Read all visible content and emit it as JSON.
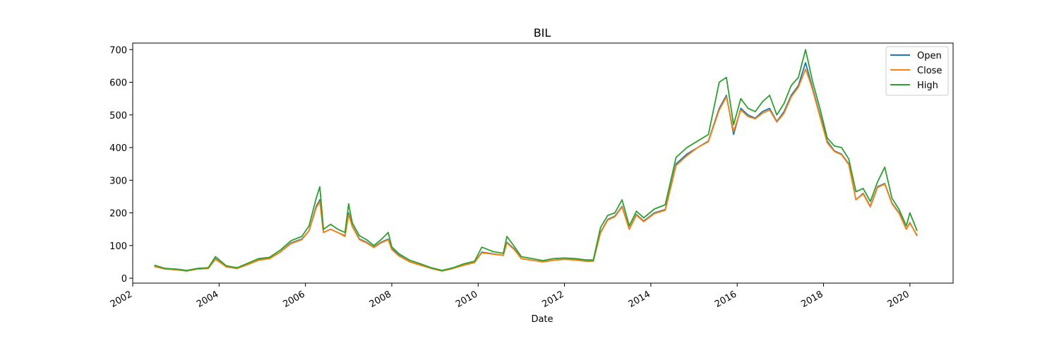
{
  "chart_data": {
    "type": "line",
    "title": "BIL",
    "xlabel": "Date",
    "ylabel": "",
    "xlim": [
      "2002-01-01",
      "2021-01-01"
    ],
    "ylim": [
      -15,
      720
    ],
    "xticks": [
      "2002",
      "2004",
      "2006",
      "2008",
      "2010",
      "2012",
      "2014",
      "2016",
      "2018",
      "2020"
    ],
    "yticks": [
      0,
      100,
      200,
      300,
      400,
      500,
      600,
      700
    ],
    "grid": false,
    "legend_position": "top-right",
    "series": [
      {
        "name": "Open",
        "color": "#1f77b4",
        "x": [
          "2002-07",
          "2002-10",
          "2003-01",
          "2003-04",
          "2003-07",
          "2003-10",
          "2003-12",
          "2004-03",
          "2004-06",
          "2004-09",
          "2004-12",
          "2005-03",
          "2005-06",
          "2005-09",
          "2005-12",
          "2006-02",
          "2006-04",
          "2006-05",
          "2006-06",
          "2006-08",
          "2006-10",
          "2006-12",
          "2007-01",
          "2007-02",
          "2007-04",
          "2007-06",
          "2007-08",
          "2007-10",
          "2007-12",
          "2008-01",
          "2008-03",
          "2008-06",
          "2008-09",
          "2008-12",
          "2009-03",
          "2009-06",
          "2009-09",
          "2009-12",
          "2010-02",
          "2010-05",
          "2010-08",
          "2010-09",
          "2010-11",
          "2011-01",
          "2011-04",
          "2011-07",
          "2011-10",
          "2012-01",
          "2012-04",
          "2012-07",
          "2012-09",
          "2012-11",
          "2013-01",
          "2013-03",
          "2013-05",
          "2013-07",
          "2013-09",
          "2013-11",
          "2014-02",
          "2014-05",
          "2014-08",
          "2014-11",
          "2015-02",
          "2015-05",
          "2015-08",
          "2015-10",
          "2015-12",
          "2016-02",
          "2016-04",
          "2016-06",
          "2016-08",
          "2016-10",
          "2016-12",
          "2017-02",
          "2017-04",
          "2017-06",
          "2017-08",
          "2017-09",
          "2017-10",
          "2017-12",
          "2018-02",
          "2018-04",
          "2018-06",
          "2018-08",
          "2018-10",
          "2018-12",
          "2019-02",
          "2019-04",
          "2019-06",
          "2019-08",
          "2019-10",
          "2019-12",
          "2020-01",
          "2020-03"
        ],
        "values": [
          36,
          28,
          26,
          22,
          28,
          30,
          60,
          35,
          30,
          42,
          56,
          60,
          80,
          108,
          120,
          145,
          220,
          240,
          140,
          150,
          140,
          130,
          200,
          160,
          120,
          110,
          95,
          110,
          120,
          90,
          70,
          50,
          40,
          30,
          22,
          30,
          40,
          48,
          80,
          75,
          70,
          110,
          90,
          60,
          55,
          50,
          55,
          58,
          56,
          52,
          52,
          140,
          180,
          190,
          220,
          150,
          195,
          175,
          200,
          210,
          350,
          380,
          400,
          420,
          520,
          560,
          440,
          520,
          500,
          490,
          510,
          520,
          480,
          510,
          560,
          590,
          660,
          620,
          580,
          500,
          420,
          390,
          380,
          350,
          240,
          260,
          220,
          280,
          290,
          230,
          200,
          150,
          170,
          130
        ]
      },
      {
        "name": "Close",
        "color": "#ff7f0e",
        "x": [
          "2002-07",
          "2002-10",
          "2003-01",
          "2003-04",
          "2003-07",
          "2003-10",
          "2003-12",
          "2004-03",
          "2004-06",
          "2004-09",
          "2004-12",
          "2005-03",
          "2005-06",
          "2005-09",
          "2005-12",
          "2006-02",
          "2006-04",
          "2006-05",
          "2006-06",
          "2006-08",
          "2006-10",
          "2006-12",
          "2007-01",
          "2007-02",
          "2007-04",
          "2007-06",
          "2007-08",
          "2007-10",
          "2007-12",
          "2008-01",
          "2008-03",
          "2008-06",
          "2008-09",
          "2008-12",
          "2009-03",
          "2009-06",
          "2009-09",
          "2009-12",
          "2010-02",
          "2010-05",
          "2010-08",
          "2010-09",
          "2010-11",
          "2011-01",
          "2011-04",
          "2011-07",
          "2011-10",
          "2012-01",
          "2012-04",
          "2012-07",
          "2012-09",
          "2012-11",
          "2013-01",
          "2013-03",
          "2013-05",
          "2013-07",
          "2013-09",
          "2013-11",
          "2014-02",
          "2014-05",
          "2014-08",
          "2014-11",
          "2015-02",
          "2015-05",
          "2015-08",
          "2015-10",
          "2015-12",
          "2016-02",
          "2016-04",
          "2016-06",
          "2016-08",
          "2016-10",
          "2016-12",
          "2017-02",
          "2017-04",
          "2017-06",
          "2017-08",
          "2017-09",
          "2017-10",
          "2017-12",
          "2018-02",
          "2018-04",
          "2018-06",
          "2018-08",
          "2018-10",
          "2018-12",
          "2019-02",
          "2019-04",
          "2019-06",
          "2019-08",
          "2019-10",
          "2019-12",
          "2020-01",
          "2020-03"
        ],
        "values": [
          36,
          28,
          26,
          22,
          28,
          30,
          58,
          35,
          30,
          42,
          55,
          60,
          80,
          106,
          118,
          145,
          215,
          235,
          140,
          150,
          140,
          128,
          195,
          158,
          118,
          108,
          94,
          108,
          118,
          88,
          68,
          50,
          40,
          30,
          22,
          30,
          40,
          48,
          78,
          74,
          70,
          108,
          88,
          60,
          55,
          50,
          55,
          58,
          56,
          52,
          52,
          138,
          178,
          188,
          218,
          150,
          193,
          173,
          198,
          208,
          345,
          375,
          400,
          418,
          515,
          555,
          450,
          515,
          495,
          488,
          505,
          515,
          478,
          505,
          555,
          585,
          640,
          610,
          575,
          495,
          415,
          388,
          378,
          348,
          240,
          258,
          218,
          278,
          288,
          228,
          198,
          150,
          168,
          132
        ]
      },
      {
        "name": "High",
        "color": "#2ca02c",
        "x": [
          "2002-07",
          "2002-10",
          "2003-01",
          "2003-04",
          "2003-07",
          "2003-10",
          "2003-12",
          "2004-03",
          "2004-06",
          "2004-09",
          "2004-12",
          "2005-03",
          "2005-06",
          "2005-09",
          "2005-12",
          "2006-02",
          "2006-04",
          "2006-05",
          "2006-06",
          "2006-08",
          "2006-10",
          "2006-12",
          "2007-01",
          "2007-02",
          "2007-04",
          "2007-06",
          "2007-08",
          "2007-10",
          "2007-12",
          "2008-01",
          "2008-03",
          "2008-06",
          "2008-09",
          "2008-12",
          "2009-03",
          "2009-06",
          "2009-09",
          "2009-12",
          "2010-02",
          "2010-05",
          "2010-08",
          "2010-09",
          "2010-11",
          "2011-01",
          "2011-04",
          "2011-07",
          "2011-10",
          "2012-01",
          "2012-04",
          "2012-07",
          "2012-09",
          "2012-11",
          "2013-01",
          "2013-03",
          "2013-05",
          "2013-07",
          "2013-09",
          "2013-11",
          "2014-02",
          "2014-05",
          "2014-08",
          "2014-11",
          "2015-02",
          "2015-05",
          "2015-08",
          "2015-10",
          "2015-12",
          "2016-02",
          "2016-04",
          "2016-06",
          "2016-08",
          "2016-10",
          "2016-12",
          "2017-02",
          "2017-04",
          "2017-06",
          "2017-08",
          "2017-09",
          "2017-10",
          "2017-12",
          "2018-02",
          "2018-04",
          "2018-06",
          "2018-08",
          "2018-10",
          "2018-12",
          "2019-02",
          "2019-04",
          "2019-06",
          "2019-08",
          "2019-10",
          "2019-12",
          "2020-01",
          "2020-03"
        ],
        "values": [
          40,
          30,
          28,
          24,
          30,
          32,
          66,
          38,
          32,
          46,
          60,
          64,
          86,
          115,
          128,
          160,
          245,
          280,
          150,
          165,
          150,
          140,
          228,
          170,
          130,
          118,
          100,
          118,
          140,
          96,
          75,
          55,
          44,
          32,
          24,
          32,
          44,
          52,
          95,
          82,
          76,
          128,
          98,
          66,
          60,
          54,
          60,
          62,
          60,
          56,
          56,
          155,
          192,
          200,
          240,
          160,
          205,
          185,
          212,
          225,
          370,
          400,
          420,
          440,
          600,
          615,
          470,
          550,
          520,
          510,
          540,
          560,
          500,
          535,
          590,
          615,
          700,
          650,
          600,
          520,
          430,
          405,
          400,
          365,
          265,
          275,
          235,
          295,
          340,
          245,
          210,
          160,
          200,
          145
        ]
      }
    ]
  }
}
